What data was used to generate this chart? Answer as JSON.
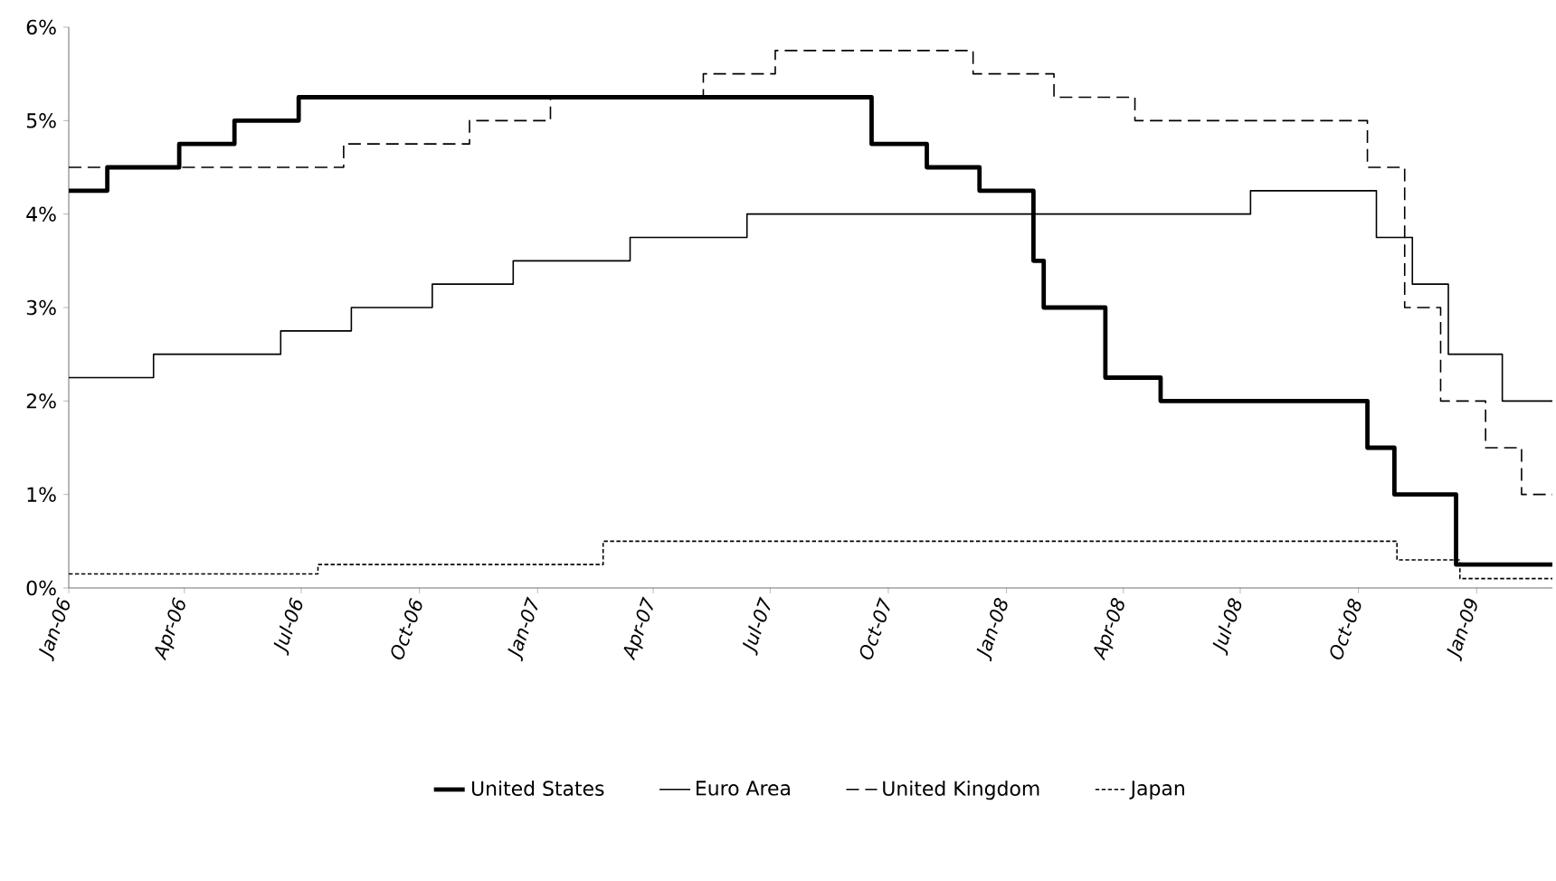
{
  "chart_data": {
    "type": "step",
    "xlim": [
      "2006-01-01",
      "2009-03-01"
    ],
    "xticks": [
      {
        "value": "2006-01-01",
        "label": "Jan-06"
      },
      {
        "value": "2006-04-01",
        "label": "Apr-06"
      },
      {
        "value": "2006-07-01",
        "label": "Jul-06"
      },
      {
        "value": "2006-10-01",
        "label": "Oct-06"
      },
      {
        "value": "2007-01-01",
        "label": "Jan-07"
      },
      {
        "value": "2007-04-01",
        "label": "Apr-07"
      },
      {
        "value": "2007-07-01",
        "label": "Jul-07"
      },
      {
        "value": "2007-10-01",
        "label": "Oct-07"
      },
      {
        "value": "2008-01-01",
        "label": "Jan-08"
      },
      {
        "value": "2008-04-01",
        "label": "Apr-08"
      },
      {
        "value": "2008-07-01",
        "label": "Jul-08"
      },
      {
        "value": "2008-10-01",
        "label": "Oct-08"
      },
      {
        "value": "2009-01-01",
        "label": "Jan-09"
      }
    ],
    "ylim": [
      0,
      6
    ],
    "yticks": [
      {
        "value": 0,
        "label": "0%"
      },
      {
        "value": 1,
        "label": "1%"
      },
      {
        "value": 2,
        "label": "2%"
      },
      {
        "value": 3,
        "label": "3%"
      },
      {
        "value": 4,
        "label": "4%"
      },
      {
        "value": 5,
        "label": "5%"
      },
      {
        "value": 6,
        "label": "6%"
      }
    ],
    "legend": "bottom",
    "grid": false,
    "series": [
      {
        "name": "United States",
        "color": "#000000",
        "line_style": "solid",
        "x": [
          "2006-01-01",
          "2006-01-31",
          "2006-03-28",
          "2006-05-10",
          "2006-06-29",
          "2007-09-18",
          "2007-10-31",
          "2007-12-11",
          "2008-01-22",
          "2008-01-30",
          "2008-03-18",
          "2008-04-30",
          "2008-10-08",
          "2008-10-29",
          "2008-12-16",
          "2009-03-01"
        ],
        "values": [
          4.25,
          4.5,
          4.75,
          5.0,
          5.25,
          4.75,
          4.5,
          4.25,
          3.5,
          3.0,
          2.25,
          2.0,
          1.5,
          1.0,
          0.25,
          0.25
        ]
      },
      {
        "name": "Euro Area",
        "color": "#000000",
        "line_style": "solid",
        "x": [
          "2006-01-01",
          "2006-03-08",
          "2006-06-15",
          "2006-08-09",
          "2006-10-11",
          "2006-12-13",
          "2007-03-14",
          "2007-06-13",
          "2008-07-09",
          "2008-10-15",
          "2008-11-12",
          "2008-12-10",
          "2009-01-21",
          "2009-03-01"
        ],
        "values": [
          2.25,
          2.5,
          2.75,
          3.0,
          3.25,
          3.5,
          3.75,
          4.0,
          4.25,
          3.75,
          3.25,
          2.5,
          2.0,
          2.0
        ]
      },
      {
        "name": "United Kingdom",
        "color": "#000000",
        "line_style": "dashed",
        "x": [
          "2006-01-01",
          "2006-08-03",
          "2006-11-09",
          "2007-01-11",
          "2007-05-10",
          "2007-07-05",
          "2007-12-06",
          "2008-02-07",
          "2008-04-10",
          "2008-10-08",
          "2008-11-06",
          "2008-12-04",
          "2009-01-08",
          "2009-02-05",
          "2009-03-01"
        ],
        "values": [
          4.5,
          4.75,
          5.0,
          5.25,
          5.5,
          5.75,
          5.5,
          5.25,
          5.0,
          4.5,
          3.0,
          2.0,
          1.5,
          1.0,
          1.0
        ]
      },
      {
        "name": "Japan",
        "color": "#000000",
        "line_style": "dotted",
        "x": [
          "2006-01-01",
          "2006-07-14",
          "2007-02-21",
          "2008-10-31",
          "2008-12-19",
          "2009-03-01"
        ],
        "values": [
          0.15,
          0.25,
          0.5,
          0.3,
          0.1,
          0.1
        ]
      }
    ]
  }
}
